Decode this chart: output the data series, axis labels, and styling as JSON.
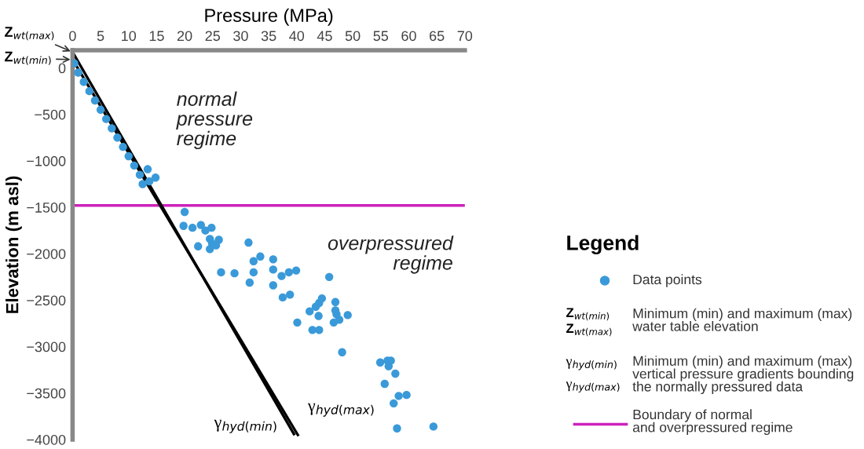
{
  "chart_data": {
    "type": "scatter",
    "xlabel": "Pressure (MPa)",
    "ylabel": "Elevation (m asl)",
    "legend_title": "Legend",
    "legend": "right",
    "grid": false,
    "xlim": [
      0,
      70
    ],
    "ylim": [
      -4000,
      190
    ],
    "xticks": [
      0,
      5,
      10,
      15,
      20,
      25,
      30,
      35,
      40,
      45,
      50,
      55,
      60,
      65,
      70
    ],
    "yticks": [
      0,
      -500,
      -1000,
      -1500,
      -2000,
      -2500,
      -3000,
      -3500,
      -4000
    ],
    "series": [
      {
        "name": "Data points",
        "marker": "circle",
        "color": "#3a9ad9",
        "x": [
          0.3,
          1,
          2,
          3,
          4,
          5,
          6,
          7,
          8,
          9,
          10,
          11,
          12,
          12.5,
          13.4,
          14.8,
          13.7,
          20.0,
          19.8,
          21.4,
          22.9,
          23.7,
          24.8,
          22.4,
          24.5,
          24.9,
          25.6,
          26.1,
          24.5,
          31.4,
          26.5,
          28.9,
          32.3,
          33.5,
          32.3,
          31.6,
          35.8,
          35.8,
          37.3,
          35.8,
          38.6,
          39.9,
          38.8,
          37.5,
          45.8,
          40.1,
          42.3,
          42.8,
          43.9,
          44.0,
          43.4,
          44.0,
          44.5,
          46.9,
          46.9,
          47.1,
          47.6,
          46.6,
          49.1,
          48.1,
          54.9,
          56.2,
          56.8,
          56.4,
          57.6,
          55.7,
          58.2,
          59.6,
          57.3,
          57.9,
          64.4
        ],
        "values": [
          50,
          -50,
          -150,
          -250,
          -350,
          -450,
          -550,
          -650,
          -750,
          -850,
          -950,
          -1050,
          -1150,
          -1250,
          -1090,
          -1180,
          -1220,
          -1550,
          -1700,
          -1720,
          -1690,
          -1750,
          -1720,
          -1920,
          -1840,
          -1890,
          -1910,
          -1850,
          -1950,
          -1880,
          -2200,
          -2210,
          -2080,
          -2030,
          -2200,
          -2310,
          -2060,
          -2170,
          -2240,
          -2340,
          -2200,
          -2180,
          -2440,
          -2470,
          -2250,
          -2740,
          -2620,
          -2820,
          -2670,
          -2820,
          -2570,
          -2530,
          -2480,
          -2520,
          -2610,
          -2650,
          -2710,
          -2740,
          -2660,
          -3060,
          -3170,
          -3150,
          -3150,
          -3210,
          -3290,
          -3400,
          -3530,
          -3520,
          -3610,
          -3880,
          -3860
        ]
      },
      {
        "name": "γ$_{hyd(min)}$",
        "type": "line",
        "line_style": "solid",
        "color": "#000000",
        "x": [
          0,
          39.5
        ],
        "values": [
          170,
          -3940
        ]
      },
      {
        "name": "γ$_{hyd(max)}$",
        "type": "line",
        "line_style": "solid",
        "color": "#000000",
        "x": [
          0,
          40.2
        ],
        "values": [
          90,
          -3950
        ]
      }
    ],
    "ref_lines": [
      {
        "axis": "y",
        "value": -1480,
        "label": "Boundary of normal\nand overpressured regime",
        "color": "#cc22bb"
      }
    ],
    "annotations": [
      "normal\npressure\nregime",
      "overpressured\nregime",
      "Z$_{wt(max)}$",
      "Z$_{wt(min)}$",
      "Minimum (min) and maximum (max)\nwater table elevation",
      "Minimum (min) and maximum (max)\nvertical pressure gradients bounding\nthe normally pressured data"
    ]
  }
}
